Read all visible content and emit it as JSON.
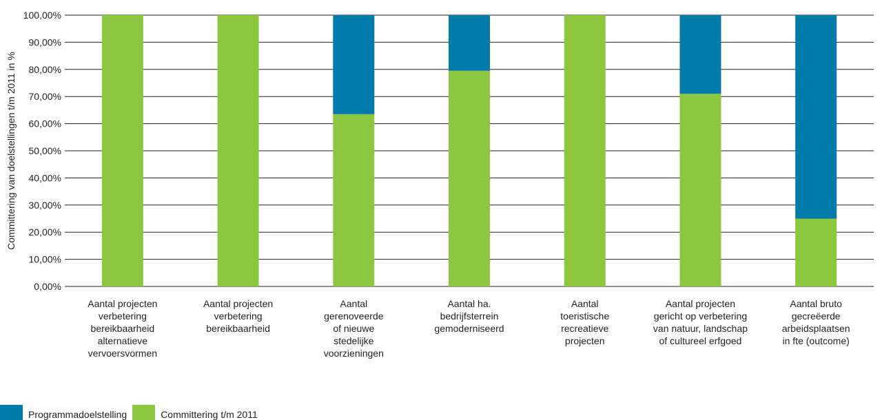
{
  "chart_data": {
    "type": "bar",
    "stacked": true,
    "ylabel": "Committering van doelstellingen t/m 2011 in %",
    "ylim": [
      0,
      100
    ],
    "yticks": [
      "0,00%",
      "10,00%",
      "20,00%",
      "30,00%",
      "40,00%",
      "50,00%",
      "60,00%",
      "70,00%",
      "80,00%",
      "90,00%",
      "100,00%"
    ],
    "categories": [
      "Aantal projecten\nverbetering\nbereikbaarheid\nalternatieve\nvervoersvormen",
      "Aantal projecten\nverbetering\nbereikbaarheid",
      "Aantal\ngerenoveerde\nof nieuwe\nstedelijke\nvoorzieningen",
      "Aantal ha.\nbedrijfsterrein\ngemoderniseerd",
      "Aantal\ntoeristische\nrecreatieve\nprojecten",
      "Aantal projecten\ngericht op verbetering\nvan natuur, landschap\nof cultureel erfgoed",
      "Aantal bruto\ngecreëerde\narbeidsplaatsen\nin fte (outcome)"
    ],
    "series": [
      {
        "name": "Committering t/m 2011",
        "color": "#8dc63f",
        "values": [
          100,
          100,
          63.5,
          79.5,
          100,
          71,
          25
        ]
      },
      {
        "name": "Programmadoelstelling",
        "color": "#007baa",
        "values": [
          0,
          0,
          36.5,
          20.5,
          0,
          29,
          75
        ]
      }
    ],
    "legend": [
      "Programmadoelstelling",
      "Committering t/m 2011"
    ],
    "legend_position": "bottom-left",
    "grid": true
  }
}
